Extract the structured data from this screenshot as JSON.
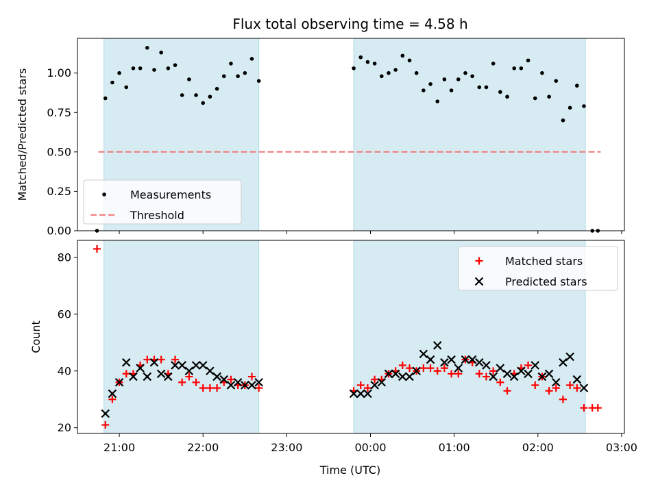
{
  "chart_data": {
    "type": "scatter",
    "title": "Flux total observing time = 4.58 h",
    "xlabel": "Time (UTC)",
    "x_ticks": [
      "21:00",
      "22:00",
      "23:00",
      "00:00",
      "01:00",
      "02:00",
      "03:00"
    ],
    "x_range": [
      "20:30",
      "03:02"
    ],
    "observing_windows": [
      [
        "20:49",
        "22:40"
      ],
      [
        "23:48",
        "02:34"
      ]
    ],
    "shade_color": "#add8e6",
    "panels": [
      {
        "id": "ratio",
        "ylabel": "Matched/Predicted stars",
        "ylim": [
          0,
          1.22
        ],
        "y_ticks": [
          "0.00",
          "0.25",
          "0.50",
          "0.75",
          "1.00"
        ],
        "legend": [
          "Measurements",
          "Threshold"
        ],
        "legend_position": "lower-left",
        "threshold": {
          "value": 0.5,
          "x_start": "20:45",
          "x_end": "02:45",
          "color": "#f08080"
        },
        "series": [
          {
            "name": "Measurements",
            "color": "#000000",
            "marker": "dot",
            "points": [
              [
                "20:44",
                0.0
              ],
              [
                "20:50",
                0.84
              ],
              [
                "20:55",
                0.94
              ],
              [
                "21:00",
                1.0
              ],
              [
                "21:05",
                0.91
              ],
              [
                "21:10",
                1.03
              ],
              [
                "21:15",
                1.03
              ],
              [
                "21:20",
                1.16
              ],
              [
                "21:25",
                1.02
              ],
              [
                "21:30",
                1.13
              ],
              [
                "21:35",
                1.03
              ],
              [
                "21:40",
                1.05
              ],
              [
                "21:45",
                0.86
              ],
              [
                "21:50",
                0.96
              ],
              [
                "21:55",
                0.86
              ],
              [
                "22:00",
                0.81
              ],
              [
                "22:05",
                0.85
              ],
              [
                "22:10",
                0.9
              ],
              [
                "22:15",
                0.98
              ],
              [
                "22:20",
                1.06
              ],
              [
                "22:25",
                0.98
              ],
              [
                "22:30",
                1.0
              ],
              [
                "22:35",
                1.09
              ],
              [
                "22:40",
                0.95
              ],
              [
                "23:48",
                1.03
              ],
              [
                "23:53",
                1.1
              ],
              [
                "23:58",
                1.07
              ],
              [
                "00:03",
                1.06
              ],
              [
                "00:08",
                0.98
              ],
              [
                "00:13",
                1.0
              ],
              [
                "00:18",
                1.02
              ],
              [
                "00:23",
                1.11
              ],
              [
                "00:28",
                1.08
              ],
              [
                "00:33",
                1.0
              ],
              [
                "00:38",
                0.89
              ],
              [
                "00:43",
                0.93
              ],
              [
                "00:48",
                0.82
              ],
              [
                "00:53",
                0.96
              ],
              [
                "00:58",
                0.89
              ],
              [
                "01:03",
                0.96
              ],
              [
                "01:08",
                1.0
              ],
              [
                "01:13",
                0.98
              ],
              [
                "01:18",
                0.91
              ],
              [
                "01:23",
                0.91
              ],
              [
                "01:28",
                1.06
              ],
              [
                "01:33",
                0.88
              ],
              [
                "01:38",
                0.85
              ],
              [
                "01:43",
                1.03
              ],
              [
                "01:48",
                1.03
              ],
              [
                "01:53",
                1.08
              ],
              [
                "01:58",
                0.84
              ],
              [
                "02:03",
                1.0
              ],
              [
                "02:08",
                0.85
              ],
              [
                "02:13",
                0.95
              ],
              [
                "02:18",
                0.7
              ],
              [
                "02:23",
                0.78
              ],
              [
                "02:28",
                0.92
              ],
              [
                "02:33",
                0.79
              ],
              [
                "02:39",
                0.0
              ],
              [
                "02:43",
                0.0
              ]
            ]
          }
        ]
      },
      {
        "id": "counts",
        "ylabel": "Count",
        "ylim": [
          18,
          86
        ],
        "y_ticks": [
          "20",
          "40",
          "60",
          "80"
        ],
        "legend": [
          "Matched stars",
          "Predicted stars"
        ],
        "legend_position": "upper-right",
        "series": [
          {
            "name": "Matched stars",
            "color": "#ff0000",
            "marker": "plus",
            "points": [
              [
                "20:44",
                83
              ],
              [
                "20:50",
                21
              ],
              [
                "20:55",
                30
              ],
              [
                "21:00",
                36
              ],
              [
                "21:05",
                39
              ],
              [
                "21:10",
                39
              ],
              [
                "21:15",
                42
              ],
              [
                "21:20",
                44
              ],
              [
                "21:25",
                44
              ],
              [
                "21:30",
                44
              ],
              [
                "21:35",
                39
              ],
              [
                "21:40",
                44
              ],
              [
                "21:45",
                36
              ],
              [
                "21:50",
                38
              ],
              [
                "21:55",
                36
              ],
              [
                "22:00",
                34
              ],
              [
                "22:05",
                34
              ],
              [
                "22:10",
                34
              ],
              [
                "22:15",
                36
              ],
              [
                "22:20",
                37
              ],
              [
                "22:25",
                35
              ],
              [
                "22:30",
                35
              ],
              [
                "22:35",
                38
              ],
              [
                "22:40",
                34
              ],
              [
                "23:48",
                33
              ],
              [
                "23:53",
                35
              ],
              [
                "23:58",
                34
              ],
              [
                "00:03",
                37
              ],
              [
                "00:08",
                37
              ],
              [
                "00:13",
                39
              ],
              [
                "00:18",
                40
              ],
              [
                "00:23",
                42
              ],
              [
                "00:28",
                41
              ],
              [
                "00:33",
                40
              ],
              [
                "00:38",
                41
              ],
              [
                "00:43",
                41
              ],
              [
                "00:48",
                40
              ],
              [
                "00:53",
                41
              ],
              [
                "00:58",
                39
              ],
              [
                "01:03",
                39
              ],
              [
                "01:08",
                44
              ],
              [
                "01:13",
                43
              ],
              [
                "01:18",
                39
              ],
              [
                "01:23",
                38
              ],
              [
                "01:28",
                40
              ],
              [
                "01:33",
                36
              ],
              [
                "01:38",
                33
              ],
              [
                "01:43",
                39
              ],
              [
                "01:48",
                41
              ],
              [
                "01:53",
                42
              ],
              [
                "01:58",
                35
              ],
              [
                "02:03",
                38
              ],
              [
                "02:08",
                33
              ],
              [
                "02:13",
                34
              ],
              [
                "02:18",
                30
              ],
              [
                "02:23",
                35
              ],
              [
                "02:28",
                34
              ],
              [
                "02:33",
                27
              ],
              [
                "02:39",
                27
              ],
              [
                "02:43",
                27
              ]
            ]
          },
          {
            "name": "Predicted stars",
            "color": "#000000",
            "marker": "x",
            "points": [
              [
                "20:50",
                25
              ],
              [
                "20:55",
                32
              ],
              [
                "21:00",
                36
              ],
              [
                "21:05",
                43
              ],
              [
                "21:10",
                38
              ],
              [
                "21:15",
                41
              ],
              [
                "21:20",
                38
              ],
              [
                "21:25",
                43
              ],
              [
                "21:30",
                39
              ],
              [
                "21:35",
                38
              ],
              [
                "21:40",
                42
              ],
              [
                "21:45",
                42
              ],
              [
                "21:50",
                40
              ],
              [
                "21:55",
                42
              ],
              [
                "22:00",
                42
              ],
              [
                "22:05",
                40
              ],
              [
                "22:10",
                38
              ],
              [
                "22:15",
                37
              ],
              [
                "22:20",
                35
              ],
              [
                "22:25",
                36
              ],
              [
                "22:30",
                35
              ],
              [
                "22:35",
                35
              ],
              [
                "22:40",
                36
              ],
              [
                "23:48",
                32
              ],
              [
                "23:53",
                32
              ],
              [
                "23:58",
                32
              ],
              [
                "00:03",
                35
              ],
              [
                "00:08",
                36
              ],
              [
                "00:13",
                39
              ],
              [
                "00:18",
                39
              ],
              [
                "00:23",
                38
              ],
              [
                "00:28",
                38
              ],
              [
                "00:33",
                40
              ],
              [
                "00:38",
                46
              ],
              [
                "00:43",
                44
              ],
              [
                "00:48",
                49
              ],
              [
                "00:53",
                43
              ],
              [
                "00:58",
                44
              ],
              [
                "01:03",
                41
              ],
              [
                "01:08",
                44
              ],
              [
                "01:13",
                44
              ],
              [
                "01:18",
                43
              ],
              [
                "01:23",
                42
              ],
              [
                "01:28",
                38
              ],
              [
                "01:33",
                41
              ],
              [
                "01:38",
                39
              ],
              [
                "01:43",
                38
              ],
              [
                "01:48",
                40
              ],
              [
                "01:53",
                39
              ],
              [
                "01:58",
                42
              ],
              [
                "02:03",
                38
              ],
              [
                "02:08",
                39
              ],
              [
                "02:13",
                36
              ],
              [
                "02:18",
                43
              ],
              [
                "02:23",
                45
              ],
              [
                "02:28",
                37
              ],
              [
                "02:33",
                34
              ]
            ]
          }
        ]
      }
    ]
  }
}
